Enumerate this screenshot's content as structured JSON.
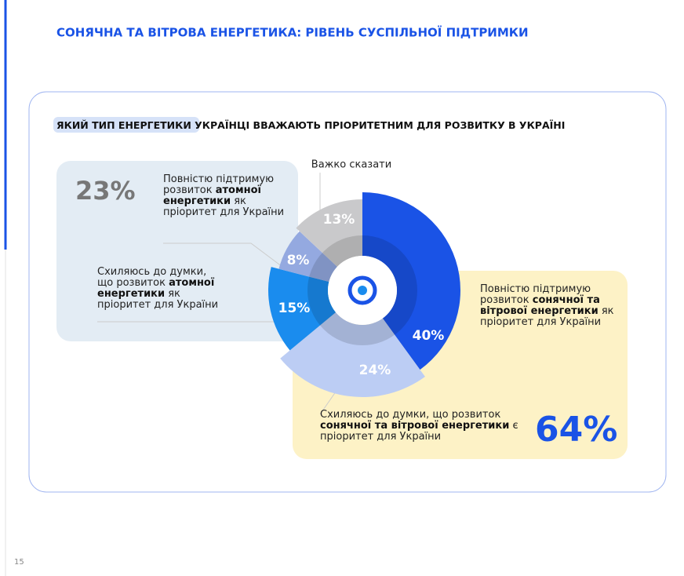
{
  "header": {
    "title": "СОНЯЧНА ТА ВІТРОВА ЕНЕРГЕТИКА: РІВЕНЬ СУСПІЛЬНОЇ ПІДТРИМКИ"
  },
  "chart_data": {
    "type": "donut",
    "title_highlight": "ЯКИЙ ТИП ЕНЕРГЕТИКИ",
    "title": "УКРАЇНЦІ ВВАЖАЮТЬ ПРІОРИТЕТНИМ ДЛЯ РОЗВИТКУ В УКРАЇНІ",
    "categories": [
      null,
      null,
      null,
      null,
      "Важко сказати"
    ],
    "values": [
      40,
      24,
      15,
      8,
      13
    ],
    "value_labels": [
      "40%",
      "24%",
      "15%",
      "8%",
      "13%"
    ],
    "colors": [
      "#1a53e6",
      "#bccdf4",
      "#1a8cee",
      "#94a9e0",
      "#c9c9cb"
    ]
  },
  "callouts": [
    {
      "text": [
        "Повністю підтримую розвиток ",
        "атомної енергетики",
        " як пріоритет для України"
      ]
    },
    {
      "text": [
        "Схиляюсь до думки, що розвиток ",
        "атомної енергетики",
        " як пріоритет для України"
      ]
    },
    {
      "text": [
        "Повністю підтримую розвиток ",
        "сонячної та вітрової енергетики",
        " як пріоритет для України"
      ]
    },
    {
      "text": [
        "Схиляюсь до думки, що розвиток ",
        "сонячної та вітрової енергетики",
        " є пріоритет для України"
      ]
    }
  ],
  "totals": [
    "23%",
    "64%"
  ],
  "page_number": "15"
}
